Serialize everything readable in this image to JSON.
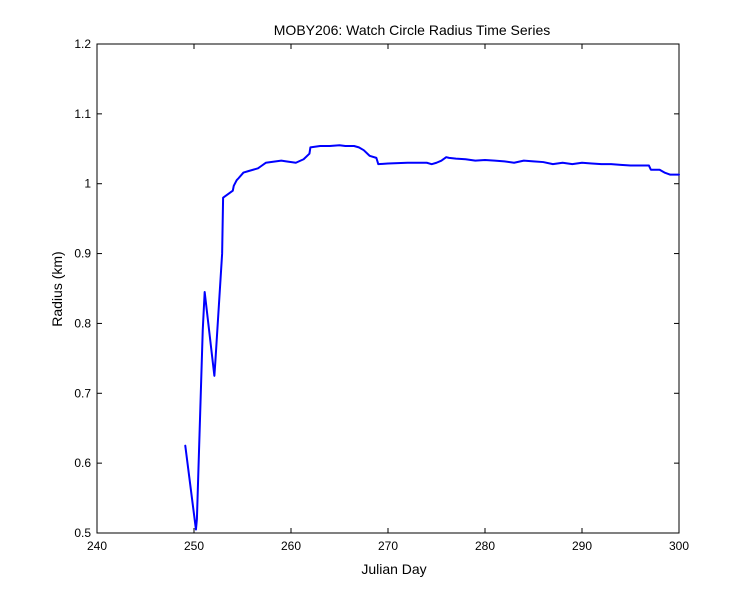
{
  "chart_data": {
    "type": "line",
    "title": "MOBY206: Watch Circle Radius Time Series",
    "xlabel": "Julian Day",
    "ylabel": "Radius (km)",
    "xlim": [
      240,
      300
    ],
    "ylim": [
      0.5,
      1.2
    ],
    "grid": false,
    "line_color": "#0000ff",
    "x_ticks": [
      240,
      250,
      260,
      270,
      280,
      290,
      300
    ],
    "x_tick_labels": [
      "240",
      "250",
      "260",
      "270",
      "280",
      "290",
      "300"
    ],
    "y_ticks": [
      0.5,
      0.6,
      0.7,
      0.8,
      0.9,
      1.0,
      1.1,
      1.2
    ],
    "y_tick_labels": [
      "0.5",
      "0.6",
      "0.7",
      "0.8",
      "0.9",
      "1",
      "1.1",
      "1.2"
    ],
    "series": [
      {
        "x": [
          249.1,
          250.2,
          250.3,
          250.9,
          251.1,
          252.1,
          252.2,
          252.9,
          253.0,
          254.0,
          254.1,
          254.4,
          254.6,
          255.1,
          255.6,
          256.6,
          256.9,
          257.4,
          259.0,
          259.5,
          260.5,
          261.3,
          261.9,
          262.0,
          263.0,
          264.0,
          265.0,
          265.6,
          266.5,
          267.0,
          267.5,
          268.1,
          268.8,
          269.0,
          270.0,
          272.0,
          274.0,
          274.5,
          275.0,
          275.5,
          276.0,
          276.3,
          277.0,
          278.0,
          279.0,
          280.0,
          281.0,
          282.0,
          283.0,
          284.0,
          285.0,
          286.0,
          287.0,
          288.0,
          289.0,
          290.0,
          291.0,
          292.0,
          293.0,
          294.0,
          295.0,
          296.0,
          296.9,
          297.1,
          298.0,
          298.5,
          299.1,
          300.0
        ],
        "y": [
          0.625,
          0.505,
          0.52,
          0.79,
          0.845,
          0.725,
          0.745,
          0.9,
          0.98,
          0.99,
          0.997,
          1.005,
          1.008,
          1.016,
          1.018,
          1.022,
          1.025,
          1.03,
          1.033,
          1.032,
          1.03,
          1.035,
          1.043,
          1.052,
          1.054,
          1.054,
          1.055,
          1.054,
          1.054,
          1.052,
          1.048,
          1.04,
          1.037,
          1.028,
          1.029,
          1.03,
          1.03,
          1.028,
          1.03,
          1.033,
          1.038,
          1.037,
          1.036,
          1.035,
          1.033,
          1.034,
          1.033,
          1.032,
          1.03,
          1.033,
          1.032,
          1.031,
          1.028,
          1.03,
          1.028,
          1.03,
          1.029,
          1.028,
          1.028,
          1.027,
          1.026,
          1.026,
          1.026,
          1.02,
          1.02,
          1.016,
          1.013,
          1.013
        ]
      }
    ]
  }
}
